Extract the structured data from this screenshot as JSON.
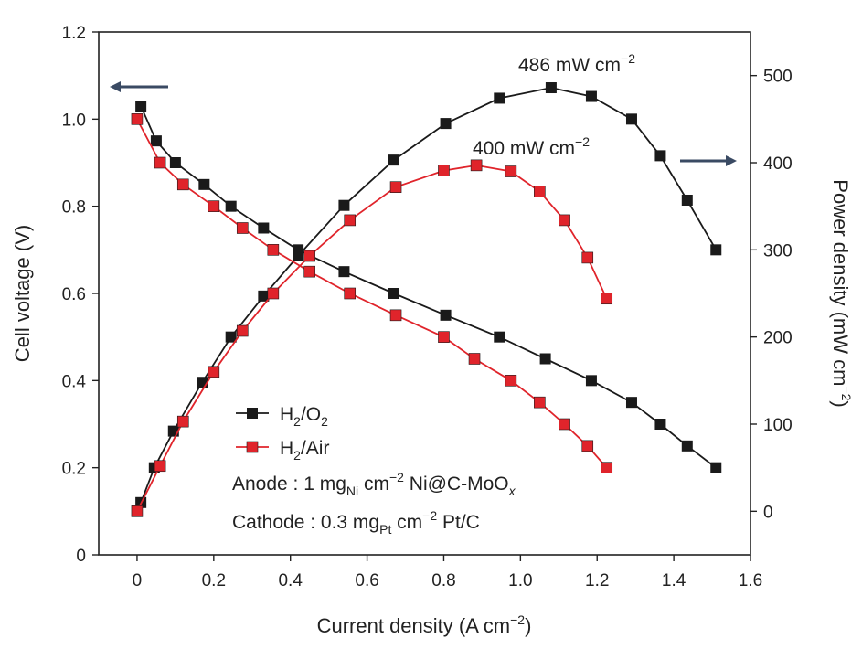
{
  "chart_data": {
    "type": "line",
    "xlabel": "Current density (A cm−2)",
    "ylabel_left": "Cell voltage (V)",
    "ylabel_right": "Power density (mW cm−2)",
    "xlim": [
      -0.1,
      1.6
    ],
    "ylim_left": [
      0,
      1.2
    ],
    "ylim_right": [
      -50,
      550
    ],
    "x_ticks": [
      "0",
      "0.2",
      "0.4",
      "0.6",
      "0.8",
      "1.0",
      "1.2",
      "1.4",
      "1.6"
    ],
    "y_ticks_left": [
      "0",
      "0.2",
      "0.4",
      "0.6",
      "0.8",
      "1.0",
      "1.2"
    ],
    "y_ticks_right": [
      "0",
      "100",
      "200",
      "300",
      "400",
      "500"
    ],
    "grid": false,
    "colors": {
      "H2/O2": "#1a1a1a",
      "H2/Air": "#e0242b",
      "arrow": "#3a4a63"
    },
    "series": [
      {
        "name": "H2/O2",
        "role": "voltage",
        "axis": "left",
        "color": "#1a1a1a",
        "x": [
          0.01,
          0.05,
          0.1,
          0.175,
          0.245,
          0.33,
          0.42,
          0.54,
          0.67,
          0.805,
          0.945,
          1.065,
          1.185,
          1.29,
          1.365,
          1.435,
          1.51
        ],
        "y": [
          1.03,
          0.95,
          0.9,
          0.85,
          0.8,
          0.75,
          0.7,
          0.65,
          0.6,
          0.55,
          0.5,
          0.45,
          0.4,
          0.35,
          0.3,
          0.25,
          0.2
        ]
      },
      {
        "name": "H2/O2",
        "role": "power",
        "axis": "right",
        "color": "#1a1a1a",
        "x": [
          0.01,
          0.045,
          0.095,
          0.17,
          0.245,
          0.33,
          0.42,
          0.54,
          0.67,
          0.805,
          0.945,
          1.08,
          1.185,
          1.29,
          1.365,
          1.435,
          1.51
        ],
        "y": [
          10,
          50,
          92,
          148,
          200,
          247,
          293,
          351,
          403,
          445,
          474,
          486,
          476,
          450,
          408,
          357,
          300
        ]
      },
      {
        "name": "H2/Air",
        "role": "voltage",
        "axis": "left",
        "color": "#e0242b",
        "x": [
          0.0,
          0.06,
          0.12,
          0.2,
          0.275,
          0.355,
          0.45,
          0.555,
          0.675,
          0.8,
          0.88,
          0.975,
          1.05,
          1.115,
          1.175,
          1.225
        ],
        "y": [
          1.0,
          0.9,
          0.85,
          0.8,
          0.75,
          0.7,
          0.65,
          0.6,
          0.55,
          0.5,
          0.45,
          0.4,
          0.35,
          0.3,
          0.25,
          0.2
        ]
      },
      {
        "name": "H2/Air",
        "role": "power",
        "axis": "right",
        "color": "#e0242b",
        "x": [
          0.0,
          0.06,
          0.12,
          0.2,
          0.275,
          0.355,
          0.45,
          0.555,
          0.675,
          0.8,
          0.885,
          0.975,
          1.05,
          1.115,
          1.175,
          1.225
        ],
        "y": [
          0,
          52,
          103,
          160,
          207,
          250,
          293,
          334,
          372,
          391,
          397,
          390,
          367,
          334,
          291,
          244
        ]
      }
    ],
    "legend": {
      "position": "lower-left",
      "entries": [
        {
          "label": "H2/O2",
          "color": "#1a1a1a"
        },
        {
          "label": "H2/Air",
          "color": "#e0242b"
        }
      ]
    },
    "annotations": {
      "peak_o2": "486 mW cm−2",
      "peak_air": "400 mW cm−2",
      "anode": "Anode : 1 mgNi cm−2 Ni@C-MoOx",
      "cathode": "Cathode : 0.3 mgPt cm−2 Pt/C"
    }
  }
}
